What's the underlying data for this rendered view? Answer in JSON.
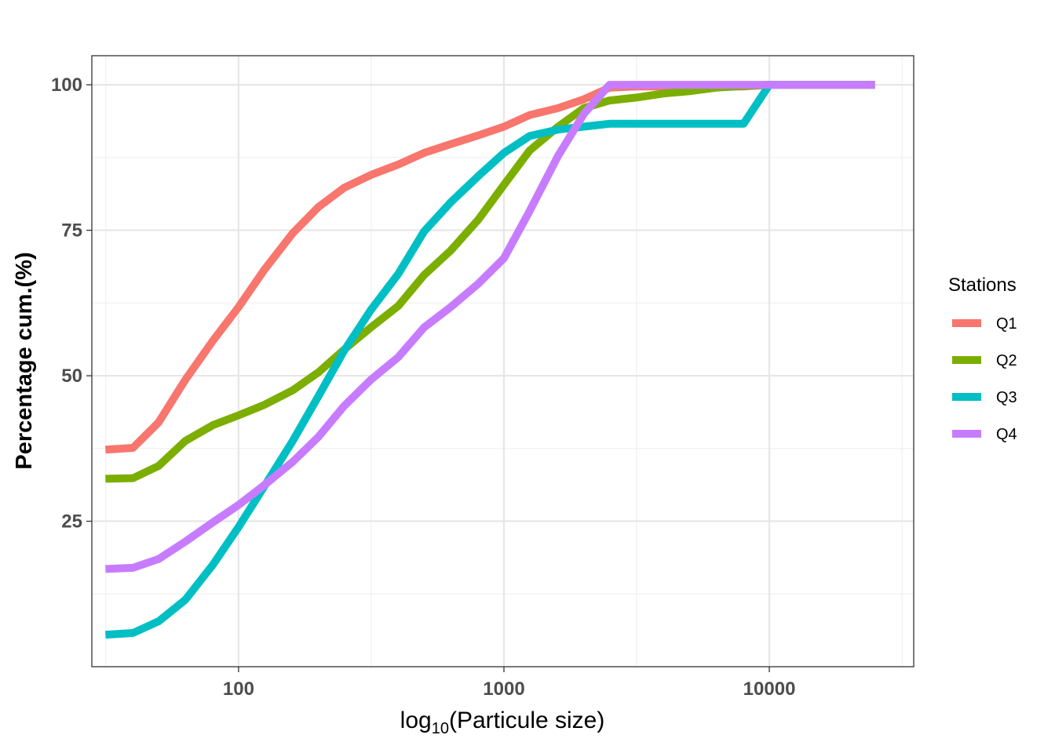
{
  "chart_data": {
    "type": "line",
    "title": "",
    "xlabel_prefix": "log",
    "xlabel_subscript": "10",
    "xlabel_suffix": "(Particule size)",
    "ylabel": "Percentage cum.(%)",
    "x_scale": "log10",
    "xlim": [
      28,
      35000
    ],
    "ylim": [
      0,
      105
    ],
    "x_ticks": [
      100,
      1000,
      10000
    ],
    "x_tick_labels": [
      "100",
      "1000",
      "10000"
    ],
    "y_ticks": [
      25,
      50,
      75,
      100
    ],
    "y_tick_labels": [
      "25",
      "50",
      "75",
      "100"
    ],
    "grid": true,
    "legend": {
      "title": "Stations",
      "position": "right"
    },
    "series": [
      {
        "name": "Q1",
        "color": "#F8766D",
        "x": [
          31.5,
          40,
          50,
          63,
          80,
          100,
          125,
          160,
          200,
          250,
          315,
          400,
          500,
          630,
          800,
          1000,
          1250,
          1600,
          2000,
          2500,
          3150,
          4000,
          5000,
          6300,
          8000,
          10000,
          12500,
          16000,
          20000,
          25000
        ],
        "y": [
          37.3,
          37.6,
          42,
          49.3,
          56,
          61.8,
          68.2,
          74.5,
          79,
          82.3,
          84.5,
          86.3,
          88.3,
          89.8,
          91.3,
          92.8,
          94.8,
          96,
          97.5,
          99.5,
          99.7,
          99.7,
          99.7,
          99.7,
          99.7,
          100,
          100,
          100,
          100,
          100
        ]
      },
      {
        "name": "Q2",
        "color": "#7CAE00",
        "x": [
          31.5,
          40,
          50,
          63,
          80,
          100,
          125,
          160,
          200,
          250,
          315,
          400,
          500,
          630,
          800,
          1000,
          1250,
          1600,
          2000,
          2500,
          3150,
          4000,
          5000,
          6300,
          8000,
          10000,
          12500,
          16000,
          20000,
          25000
        ],
        "y": [
          32.3,
          32.4,
          34.5,
          38.8,
          41.5,
          43.2,
          45,
          47.5,
          50.6,
          54.5,
          58.3,
          62,
          67.3,
          71.5,
          76.8,
          82.8,
          88.7,
          92.8,
          96,
          97.3,
          97.8,
          98.5,
          98.9,
          99.5,
          99.8,
          100,
          100,
          100,
          100,
          100
        ]
      },
      {
        "name": "Q3",
        "color": "#00BFC4",
        "x": [
          31.5,
          40,
          50,
          63,
          80,
          100,
          125,
          160,
          200,
          250,
          315,
          400,
          500,
          630,
          800,
          1000,
          1250,
          1600,
          2000,
          2500,
          3150,
          4000,
          5000,
          6300,
          8000,
          10000,
          12500,
          16000,
          20000,
          25000
        ],
        "y": [
          5.5,
          5.8,
          7.8,
          11.5,
          17.5,
          24,
          31,
          38.8,
          46.5,
          54.3,
          61.3,
          67.5,
          74.8,
          79.8,
          84.3,
          88.3,
          91.2,
          92.3,
          92.8,
          93.3,
          93.3,
          93.3,
          93.3,
          93.3,
          93.3,
          100,
          100,
          100,
          100,
          100
        ]
      },
      {
        "name": "Q4",
        "color": "#C77CFF",
        "x": [
          31.5,
          40,
          50,
          63,
          80,
          100,
          125,
          160,
          200,
          250,
          315,
          400,
          500,
          630,
          800,
          1000,
          1250,
          1600,
          2000,
          2500,
          3150,
          4000,
          5000,
          6300,
          8000,
          10000,
          12500,
          16000,
          20000,
          25000
        ],
        "y": [
          16.8,
          17,
          18.5,
          21.5,
          24.8,
          27.8,
          31.2,
          35.2,
          39.5,
          44.8,
          49.3,
          53.2,
          58.3,
          61.8,
          65.8,
          70.2,
          78.3,
          87.8,
          95,
          100,
          100,
          100,
          100,
          100,
          100,
          100,
          100,
          100,
          100,
          100
        ]
      }
    ]
  }
}
